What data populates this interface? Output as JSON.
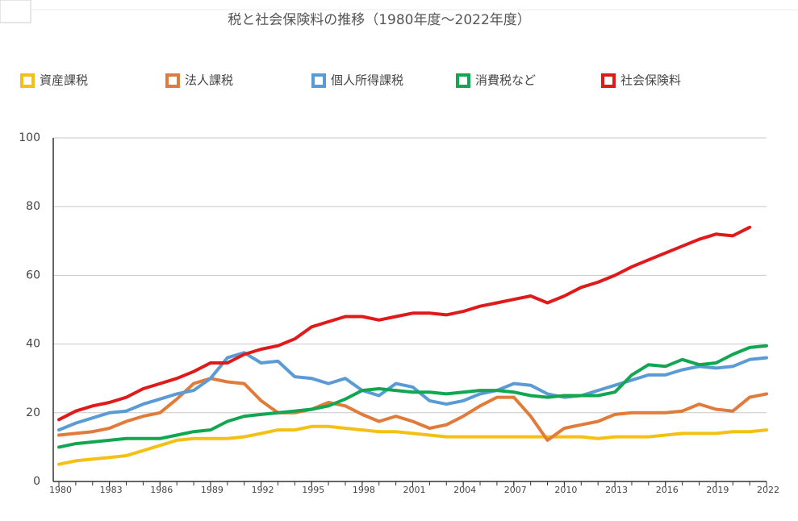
{
  "chart_data": {
    "type": "line",
    "title": "税と社会保険料の推移（1980年度～2022年度）",
    "x": [
      1980,
      1981,
      1982,
      1983,
      1984,
      1985,
      1986,
      1987,
      1988,
      1989,
      1990,
      1991,
      1992,
      1993,
      1994,
      1995,
      1996,
      1997,
      1998,
      1999,
      2000,
      2001,
      2002,
      2003,
      2004,
      2005,
      2006,
      2007,
      2008,
      2009,
      2010,
      2011,
      2012,
      2013,
      2014,
      2015,
      2016,
      2017,
      2018,
      2019,
      2020,
      2021,
      2022
    ],
    "series": [
      {
        "name": "資産課税",
        "color": "#f5c014",
        "values": [
          5,
          6,
          6.5,
          7,
          7.5,
          9,
          10.5,
          12,
          12.5,
          12.5,
          12.5,
          13,
          14,
          15,
          15,
          16,
          16,
          15.5,
          15,
          14.5,
          14.5,
          14,
          13.5,
          13,
          13,
          13,
          13,
          13,
          13,
          13,
          13,
          13,
          12.5,
          13,
          13,
          13,
          13.5,
          14,
          14,
          14,
          14.5,
          14.5,
          15
        ]
      },
      {
        "name": "法人課税",
        "color": "#e07b39",
        "values": [
          13.5,
          14,
          14.5,
          15.5,
          17.5,
          19,
          20,
          24,
          28.5,
          30,
          29,
          28.5,
          23.5,
          20,
          20,
          21,
          23,
          22,
          19.5,
          17.5,
          19,
          17.5,
          15.5,
          16.5,
          19,
          22,
          24.5,
          24.5,
          19,
          12,
          15.5,
          16.5,
          17.5,
          19.5,
          20,
          20,
          20,
          20.5,
          22.5,
          21,
          20.5,
          24.5,
          25.5
        ]
      },
      {
        "name": "個人所得課税",
        "color": "#5b9bd5",
        "values": [
          15,
          17,
          18.5,
          20,
          20.5,
          22.5,
          24,
          25.5,
          26.5,
          30,
          36,
          37.5,
          34.5,
          35,
          30.5,
          30,
          28.5,
          30,
          26.5,
          25,
          28.5,
          27.5,
          23.5,
          22.5,
          23.5,
          25.5,
          26.5,
          28.5,
          28,
          25.5,
          24.5,
          25,
          26.5,
          28,
          29.5,
          31,
          31,
          32.5,
          33.5,
          33,
          33.5,
          35.5,
          36
        ]
      },
      {
        "name": "消費税など",
        "color": "#12a650",
        "values": [
          10,
          11,
          11.5,
          12,
          12.5,
          12.5,
          12.5,
          13.5,
          14.5,
          15,
          17.5,
          19,
          19.5,
          20,
          20.5,
          21,
          22,
          24,
          26.5,
          27,
          26.5,
          26,
          26,
          25.5,
          26,
          26.5,
          26.5,
          26,
          25,
          24.5,
          25,
          25,
          25,
          26,
          31,
          34,
          33.5,
          35.5,
          34,
          34.5,
          37,
          39,
          39.5
        ]
      },
      {
        "name": "社会保険料",
        "color": "#e01a1a",
        "values": [
          18,
          20.5,
          22,
          23,
          24.5,
          27,
          28.5,
          30,
          32,
          34.5,
          34.5,
          37,
          38.5,
          39.5,
          41.5,
          45,
          46.5,
          48,
          48,
          47,
          48,
          49,
          49,
          48.5,
          49.5,
          51,
          52,
          53,
          54,
          52,
          54,
          56.5,
          58,
          60,
          62.5,
          64.5,
          66.5,
          68.5,
          70.5,
          72,
          71.5,
          74,
          null
        ]
      }
    ],
    "xlim": [
      1980,
      2022
    ],
    "xticks": [
      1980,
      1983,
      1986,
      1989,
      1992,
      1995,
      1998,
      2001,
      2004,
      2007,
      2010,
      2013,
      2016,
      2019,
      2022
    ],
    "ylim": [
      0,
      100
    ],
    "yticks": [
      0,
      20,
      40,
      60,
      80,
      100
    ],
    "grid": true
  }
}
